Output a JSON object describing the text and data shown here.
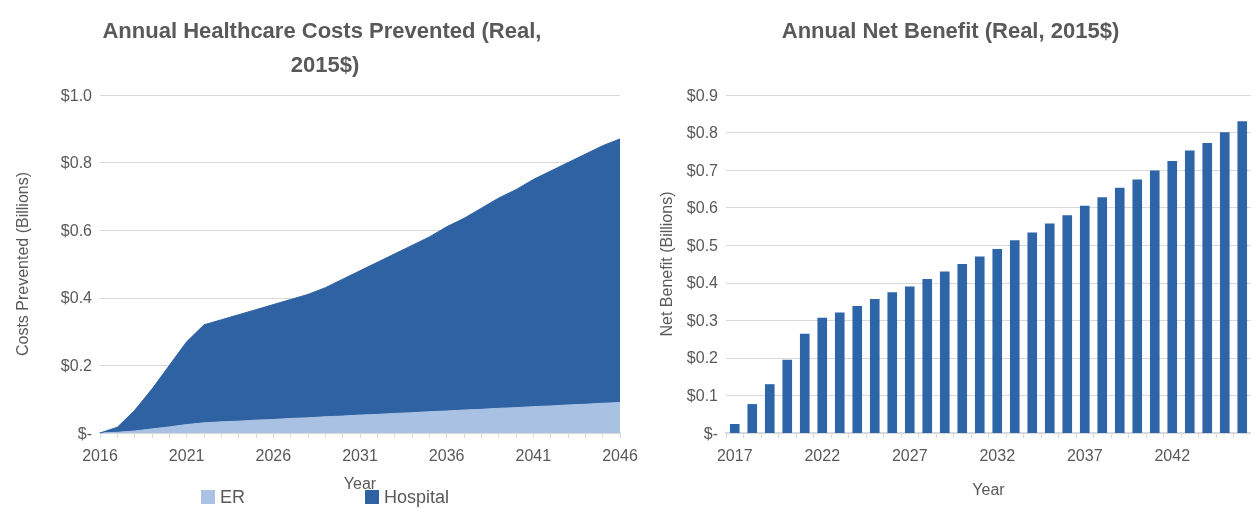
{
  "chart_data": [
    {
      "type": "area",
      "title": "Annual Healthcare Costs Prevented (Real, 2015$)",
      "xlabel": "Year",
      "ylabel": "Costs Prevented (Billions)",
      "stacked": true,
      "categories": [
        "2016",
        null,
        null,
        null,
        null,
        "2021",
        null,
        null,
        null,
        null,
        "2026",
        null,
        null,
        null,
        null,
        "2031",
        null,
        null,
        null,
        null,
        "2036",
        null,
        null,
        null,
        null,
        "2041",
        null,
        null,
        null,
        null,
        "2046"
      ],
      "series": [
        {
          "name": "ER",
          "color": "#a9c2e4",
          "values": [
            0,
            0.002,
            0.006,
            0.012,
            0.018,
            0.025,
            0.03,
            0.033,
            0.035,
            0.038,
            0.04,
            0.043,
            0.045,
            0.048,
            0.05,
            0.053,
            0.055,
            0.058,
            0.06,
            0.063,
            0.065,
            0.068,
            0.07,
            0.073,
            0.075,
            0.078,
            0.08,
            0.083,
            0.085,
            0.088,
            0.09
          ]
        },
        {
          "name": "Hospital",
          "color": "#2f62a3",
          "values": [
            0,
            0.015,
            0.061,
            0.118,
            0.182,
            0.245,
            0.29,
            0.302,
            0.315,
            0.327,
            0.34,
            0.352,
            0.365,
            0.382,
            0.405,
            0.427,
            0.45,
            0.472,
            0.495,
            0.517,
            0.545,
            0.567,
            0.595,
            0.622,
            0.645,
            0.672,
            0.695,
            0.717,
            0.74,
            0.762,
            0.78
          ]
        }
      ],
      "ylim": [
        0,
        1
      ],
      "yticks": [
        {
          "value": 0,
          "label": "$-"
        },
        {
          "value": 0.2,
          "label": "$0.2"
        },
        {
          "value": 0.4,
          "label": "$0.4"
        },
        {
          "value": 0.6,
          "label": "$0.6"
        },
        {
          "value": 0.8,
          "label": "$0.8"
        },
        {
          "value": 1,
          "label": "$1.0"
        }
      ],
      "grid": "y",
      "legend": "bottom"
    },
    {
      "type": "bar",
      "title": "Annual Net Benefit (Real, 2015$)",
      "xlabel": "Year",
      "ylabel": "Net Benefit (Billions)",
      "categories": [
        "2017",
        null,
        null,
        null,
        null,
        "2022",
        null,
        null,
        null,
        null,
        "2027",
        null,
        null,
        null,
        null,
        "2032",
        null,
        null,
        null,
        null,
        "2037",
        null,
        null,
        null,
        null,
        "2042",
        null,
        null,
        null,
        null
      ],
      "series": [
        {
          "color": "#2e64a8",
          "values": [
            0.024,
            0.077,
            0.13,
            0.195,
            0.264,
            0.307,
            0.321,
            0.338,
            0.357,
            0.375,
            0.39,
            0.41,
            0.43,
            0.45,
            0.47,
            0.49,
            0.513,
            0.534,
            0.558,
            0.58,
            0.605,
            0.628,
            0.653,
            0.675,
            0.699,
            0.724,
            0.752,
            0.772,
            0.801,
            0.83
          ]
        }
      ],
      "ylim": [
        0,
        0.9
      ],
      "yticks": [
        {
          "value": 0,
          "label": "$-"
        },
        {
          "value": 0.1,
          "label": "$0.1"
        },
        {
          "value": 0.2,
          "label": "$0.2"
        },
        {
          "value": 0.3,
          "label": "$0.3"
        },
        {
          "value": 0.4,
          "label": "$0.4"
        },
        {
          "value": 0.5,
          "label": "$0.5"
        },
        {
          "value": 0.6,
          "label": "$0.6"
        },
        {
          "value": 0.7,
          "label": "$0.7"
        },
        {
          "value": 0.8,
          "label": "$0.8"
        },
        {
          "value": 0.9,
          "label": "$0.9"
        }
      ],
      "grid": "y",
      "legend": false
    }
  ]
}
